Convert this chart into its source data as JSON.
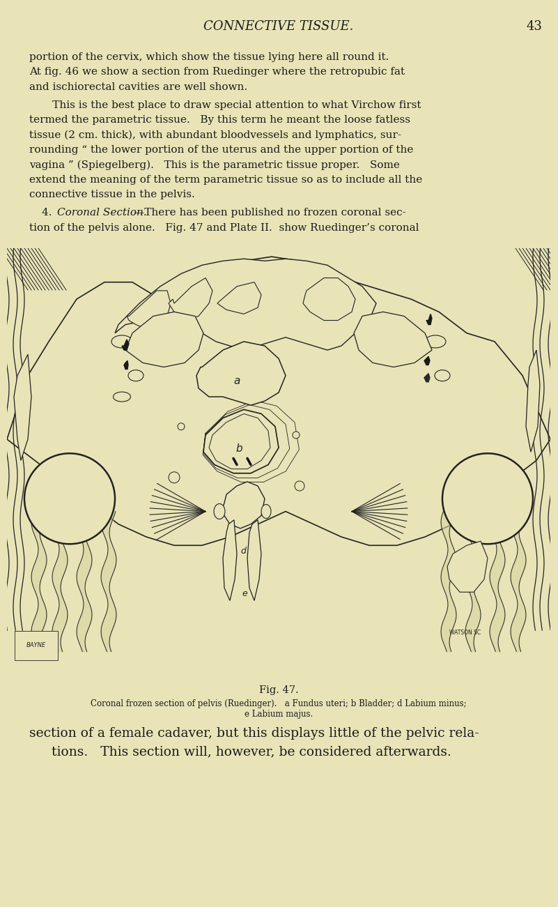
{
  "bg_color": "#e8e4b8",
  "text_color": "#1a1a1a",
  "header_text": "CONNECTIVE TISSUE.",
  "header_page": "43",
  "body_lines": [
    "portion of the cervix, which show the tissue lying here all round it.",
    "At fig. 46 we show a section from Ruedinger where the retropubic fat",
    "and ischiorectal cavities are well shown.",
    " This is the best place to draw special attention to what Virchow first",
    "termed the parametric tissue.   By this term he meant the loose fatless",
    "tissue (2 cm. thick), with abundant bloodvessels and lymphatics, sur-",
    "rounding “ the lower portion of the uterus and the upper portion of the",
    "vagina ” (Spiegelberg).   This is the parametric tissue proper.   Some",
    "extend the meaning of the term parametric tissue so as to include all the",
    "connective tissue in the pelvis."
  ],
  "fig_caption": "Fig. 47.",
  "subcaption_line1": "Coronal frozen section of pelvis (Ruedinger).   a Fundus uteri; b Bladder; d Labium minus;",
  "subcaption_line2": "e Labium majus.",
  "bottom_line1": "section of a female cadaver, but this displays little of the pelvic rela-",
  "bottom_line2": "tions.   This section will, however, be considered afterwards."
}
